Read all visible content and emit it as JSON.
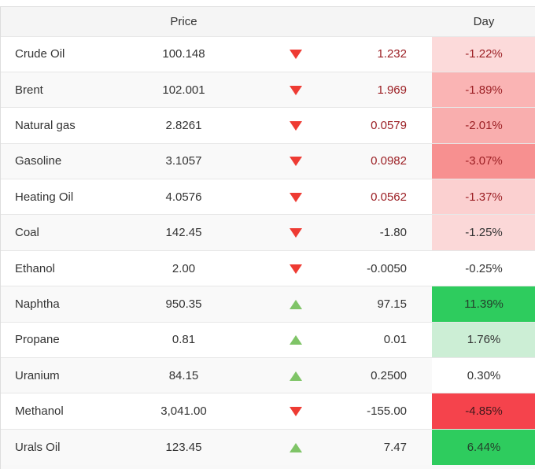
{
  "header": {
    "name_label": "",
    "price_label": "Price",
    "change_label": "",
    "day_label": "Day"
  },
  "colors": {
    "header_bg": "#f5f5f5",
    "row_stripe": "#f9f9f9",
    "border": "#e7e7e7",
    "text": "#333333",
    "negative_text": "#9c2025",
    "down_arrow": "#ee3b33",
    "up_arrow": "#7fc467"
  },
  "table": {
    "rows": [
      {
        "name": "Crude Oil",
        "price": "100.148",
        "direction": "down",
        "change": "1.232",
        "change_color": "#9c2025",
        "day": "-1.22%",
        "day_bg": "#fcdada",
        "day_color": "#9c2025"
      },
      {
        "name": "Brent",
        "price": "102.001",
        "direction": "down",
        "change": "1.969",
        "change_color": "#9c2025",
        "day": "-1.89%",
        "day_bg": "#fab4b4",
        "day_color": "#9c2025"
      },
      {
        "name": "Natural gas",
        "price": "2.8261",
        "direction": "down",
        "change": "0.0579",
        "change_color": "#9c2025",
        "day": "-2.01%",
        "day_bg": "#f9aeae",
        "day_color": "#9c2025"
      },
      {
        "name": "Gasoline",
        "price": "3.1057",
        "direction": "down",
        "change": "0.0982",
        "change_color": "#9c2025",
        "day": "-3.07%",
        "day_bg": "#f79090",
        "day_color": "#9c2025"
      },
      {
        "name": "Heating Oil",
        "price": "4.0576",
        "direction": "down",
        "change": "0.0562",
        "change_color": "#9c2025",
        "day": "-1.37%",
        "day_bg": "#fbd0d0",
        "day_color": "#9c2025"
      },
      {
        "name": "Coal",
        "price": "142.45",
        "direction": "down",
        "change": "-1.80",
        "change_color": "#333333",
        "day": "-1.25%",
        "day_bg": "#fbd8d8",
        "day_color": "#333333"
      },
      {
        "name": "Ethanol",
        "price": "2.00",
        "direction": "down",
        "change": "-0.0050",
        "change_color": "#333333",
        "day": "-0.25%",
        "day_bg": "#ffffff",
        "day_color": "#333333"
      },
      {
        "name": "Naphtha",
        "price": "950.35",
        "direction": "up",
        "change": "97.15",
        "change_color": "#333333",
        "day": "11.39%",
        "day_bg": "#2ecc5e",
        "day_color": "#24402c"
      },
      {
        "name": "Propane",
        "price": "0.81",
        "direction": "up",
        "change": "0.01",
        "change_color": "#333333",
        "day": "1.76%",
        "day_bg": "#cceed5",
        "day_color": "#333333"
      },
      {
        "name": "Uranium",
        "price": "84.15",
        "direction": "up",
        "change": "0.2500",
        "change_color": "#333333",
        "day": "0.30%",
        "day_bg": "#ffffff",
        "day_color": "#333333"
      },
      {
        "name": "Methanol",
        "price": "3,041.00",
        "direction": "down",
        "change": "-155.00",
        "change_color": "#333333",
        "day": "-4.85%",
        "day_bg": "#f5434c",
        "day_color": "#42191c"
      },
      {
        "name": "Urals Oil",
        "price": "123.45",
        "direction": "up",
        "change": "7.47",
        "change_color": "#333333",
        "day": "6.44%",
        "day_bg": "#2ecc5e",
        "day_color": "#24402c"
      }
    ]
  }
}
